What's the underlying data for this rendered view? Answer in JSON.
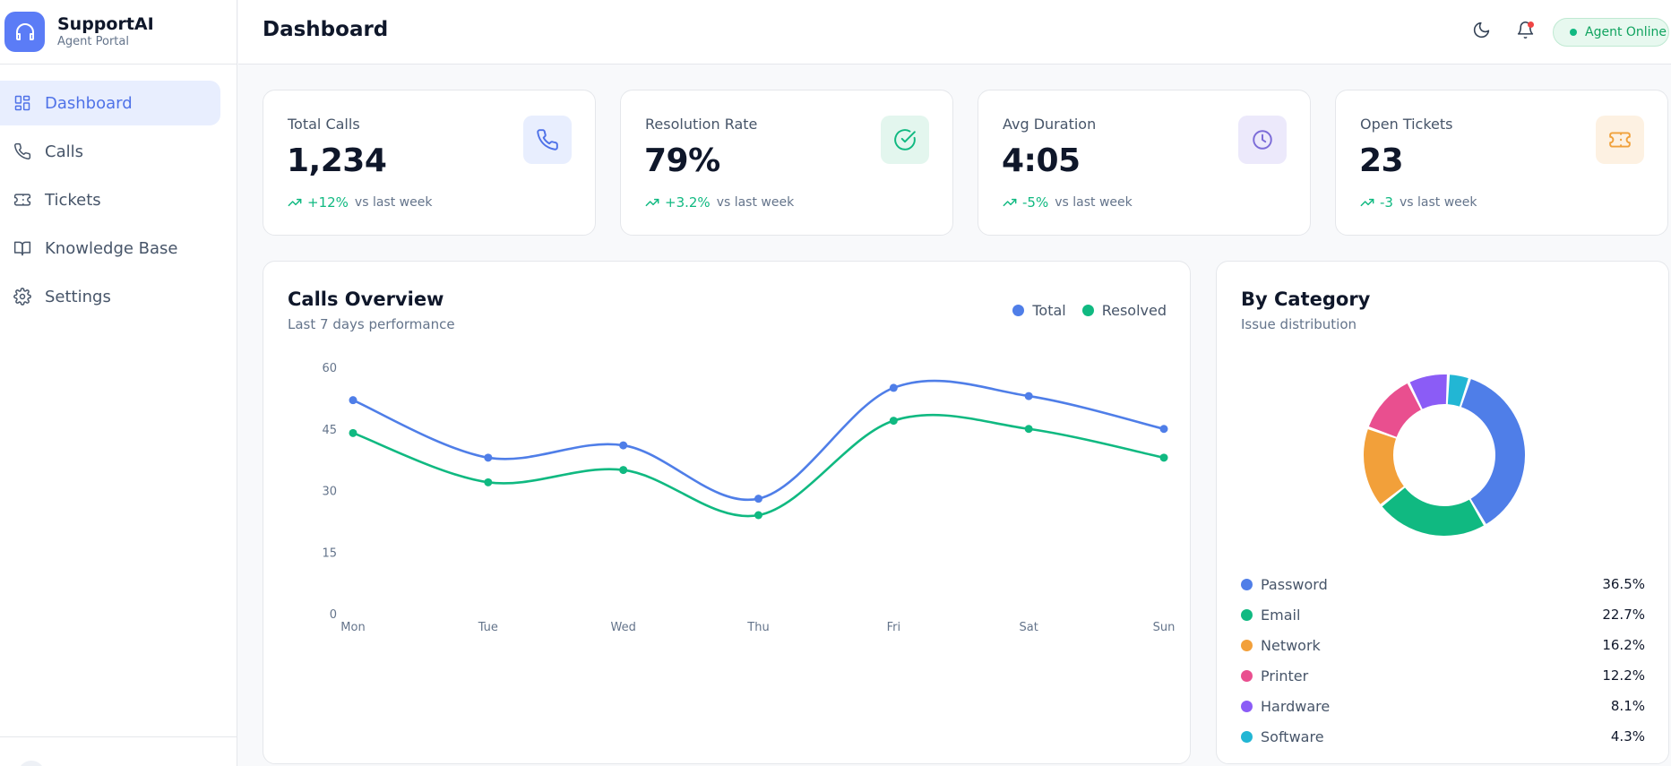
{
  "brand": {
    "name": "SupportAI",
    "subtitle": "Agent Portal"
  },
  "sidebar": {
    "items": [
      {
        "label": "Dashboard",
        "icon": "dashboard-grid-icon",
        "active": true
      },
      {
        "label": "Calls",
        "icon": "phone-icon",
        "active": false
      },
      {
        "label": "Tickets",
        "icon": "ticket-icon",
        "active": false
      },
      {
        "label": "Knowledge Base",
        "icon": "book-icon",
        "active": false
      },
      {
        "label": "Settings",
        "icon": "gear-icon",
        "active": false
      }
    ]
  },
  "header": {
    "title": "Dashboard",
    "status": "Agent Online",
    "status_color": "#10b981"
  },
  "stats": [
    {
      "label": "Total Calls",
      "value": "1,234",
      "change": "+12%",
      "vs": "vs last week",
      "icon": "phone-icon",
      "icon_bg": "#e8eefe",
      "icon_color": "#4f72e8"
    },
    {
      "label": "Resolution Rate",
      "value": "79%",
      "change": "+3.2%",
      "vs": "vs last week",
      "icon": "check-circle-icon",
      "icon_bg": "#e3f6ee",
      "icon_color": "#10b981"
    },
    {
      "label": "Avg Duration",
      "value": "4:05",
      "change": "-5%",
      "vs": "vs last week",
      "icon": "clock-icon",
      "icon_bg": "#ece9fb",
      "icon_color": "#7c6cd8"
    },
    {
      "label": "Open Tickets",
      "value": "23",
      "change": "-3",
      "vs": "vs last week",
      "icon": "ticket-icon",
      "icon_bg": "#fdf1e2",
      "icon_color": "#f0a13c"
    }
  ],
  "calls_overview": {
    "title": "Calls Overview",
    "subtitle": "Last 7 days performance"
  },
  "by_category": {
    "title": "By Category",
    "subtitle": "Issue distribution"
  },
  "chart_data": [
    {
      "type": "line",
      "title": "Calls Overview",
      "subtitle": "Last 7 days performance",
      "categories": [
        "Mon",
        "Tue",
        "Wed",
        "Thu",
        "Fri",
        "Sat",
        "Sun"
      ],
      "yticks": [
        0,
        15,
        30,
        45,
        60
      ],
      "ylim": [
        0,
        60
      ],
      "series": [
        {
          "name": "Total",
          "color": "#4f7ee8",
          "values": [
            52,
            38,
            41,
            28,
            55,
            53,
            45
          ]
        },
        {
          "name": "Resolved",
          "color": "#10b981",
          "values": [
            44,
            32,
            35,
            24,
            47,
            45,
            38
          ]
        }
      ],
      "legend": "top-right"
    },
    {
      "type": "pie",
      "title": "By Category",
      "subtitle": "Issue distribution",
      "categories": [
        "Password",
        "Email",
        "Network",
        "Printer",
        "Hardware",
        "Software"
      ],
      "values": [
        36.5,
        22.7,
        16.2,
        12.2,
        8.1,
        4.3
      ],
      "labels": [
        "36.5%",
        "22.7%",
        "16.2%",
        "12.2%",
        "8.1%",
        "4.3%"
      ],
      "colors": [
        "#4f7ee8",
        "#10b981",
        "#f2a03a",
        "#e94f8f",
        "#8b5cf6",
        "#22b6d4"
      ]
    }
  ]
}
